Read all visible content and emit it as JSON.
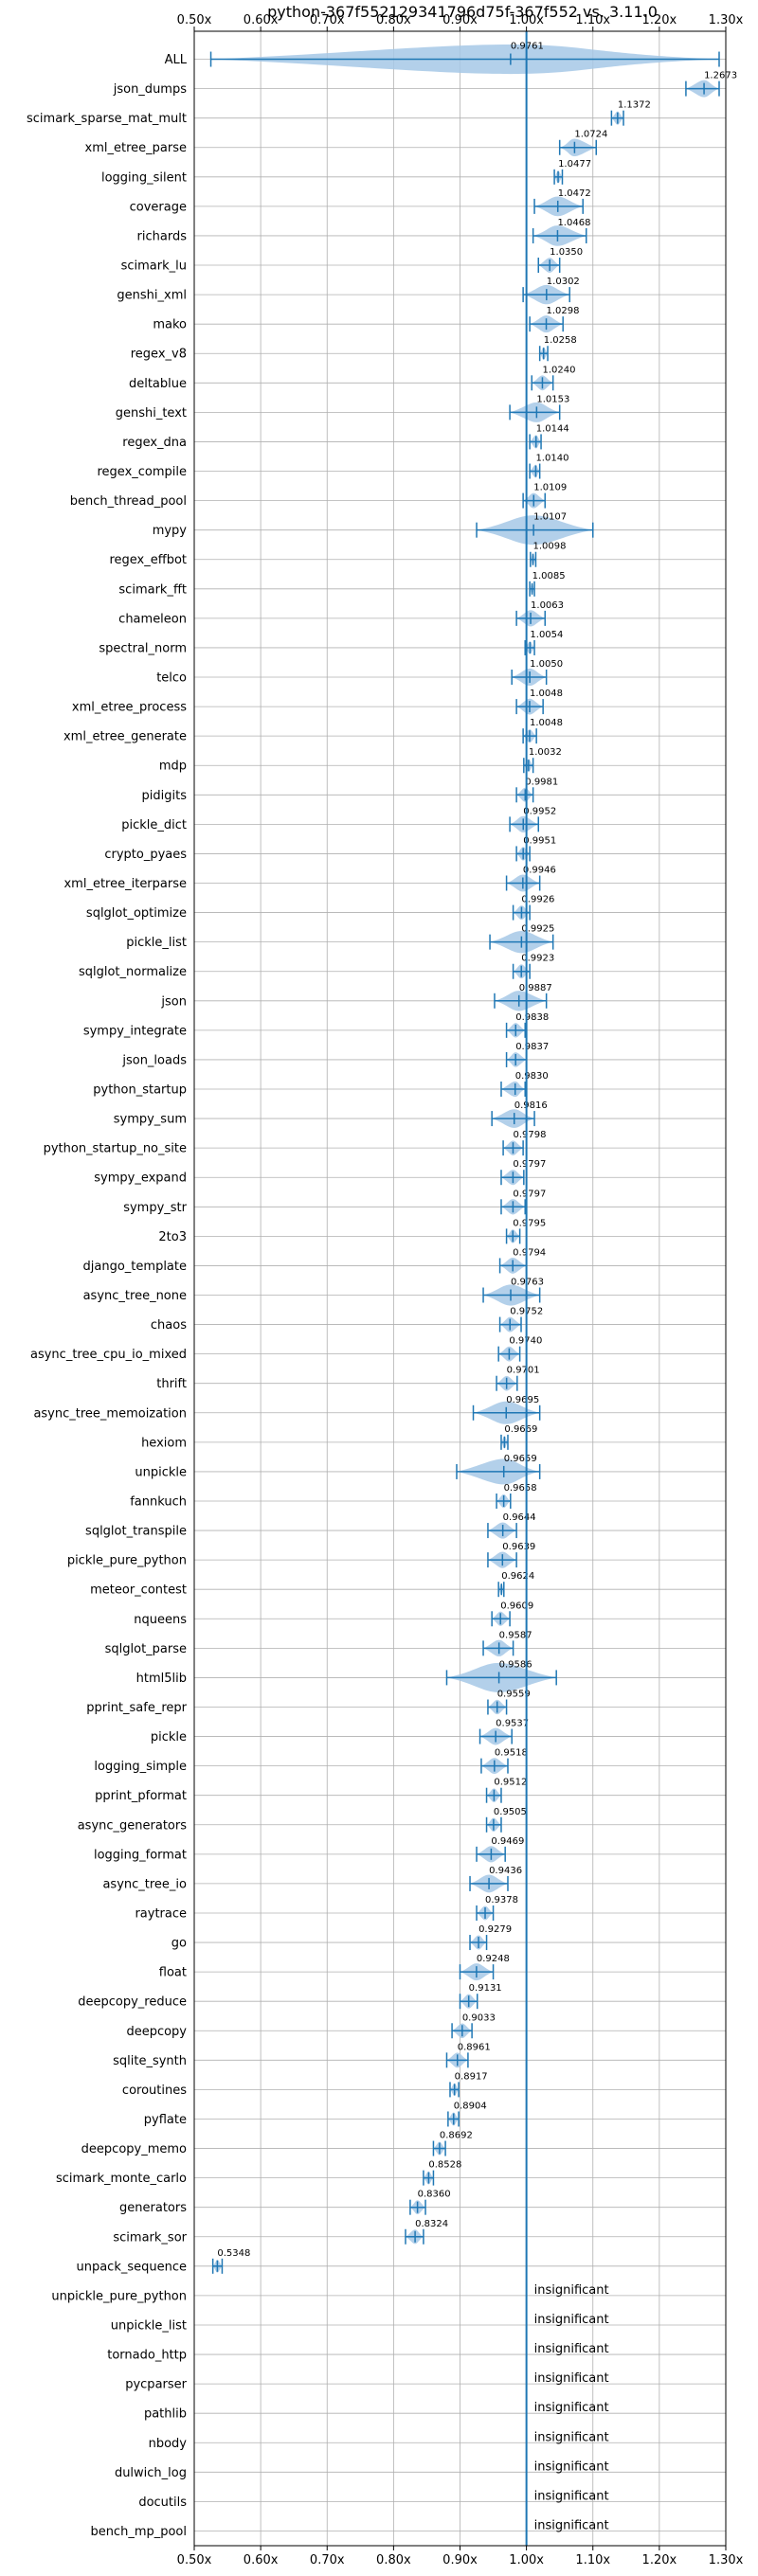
{
  "chart_data": {
    "type": "violin",
    "orientation": "horizontal",
    "title": "python-367f552129341796d75f-367f552 vs. 3.11.0",
    "xlim": [
      0.5,
      1.3
    ],
    "xticks": [
      0.5,
      0.6,
      0.7,
      0.8,
      0.9,
      1.0,
      1.1,
      1.2,
      1.3
    ],
    "xtick_labels": [
      "0.50x",
      "0.60x",
      "0.70x",
      "0.80x",
      "0.90x",
      "1.00x",
      "1.10x",
      "1.20x",
      "1.30x"
    ],
    "grid": true,
    "reference_line": 1.0,
    "colors": {
      "series": "#1f77b4",
      "violin_fill": "#a6c8e6",
      "grid": "#b0b0b0"
    },
    "insignificant_label": "insignificant",
    "benchmarks": [
      {
        "name": "ALL",
        "value": 0.9761,
        "min": 0.525,
        "max": 1.29,
        "label": "0.9761"
      },
      {
        "name": "json_dumps",
        "value": 1.2673,
        "min": 1.24,
        "max": 1.29,
        "label": "1.2673"
      },
      {
        "name": "scimark_sparse_mat_mult",
        "value": 1.1372,
        "min": 1.128,
        "max": 1.146,
        "label": "1.1372"
      },
      {
        "name": "xml_etree_parse",
        "value": 1.0724,
        "min": 1.05,
        "max": 1.105,
        "label": "1.0724"
      },
      {
        "name": "logging_silent",
        "value": 1.0477,
        "min": 1.042,
        "max": 1.054,
        "label": "1.0477"
      },
      {
        "name": "coverage",
        "value": 1.0472,
        "min": 1.012,
        "max": 1.085,
        "label": "1.0472"
      },
      {
        "name": "richards",
        "value": 1.0468,
        "min": 1.01,
        "max": 1.09,
        "label": "1.0468"
      },
      {
        "name": "scimark_lu",
        "value": 1.035,
        "min": 1.018,
        "max": 1.05,
        "label": "1.0350"
      },
      {
        "name": "genshi_xml",
        "value": 1.0302,
        "min": 0.995,
        "max": 1.065,
        "label": "1.0302"
      },
      {
        "name": "mako",
        "value": 1.0298,
        "min": 1.005,
        "max": 1.055,
        "label": "1.0298"
      },
      {
        "name": "regex_v8",
        "value": 1.0258,
        "min": 1.02,
        "max": 1.032,
        "label": "1.0258"
      },
      {
        "name": "deltablue",
        "value": 1.024,
        "min": 1.008,
        "max": 1.04,
        "label": "1.0240"
      },
      {
        "name": "genshi_text",
        "value": 1.0153,
        "min": 0.975,
        "max": 1.05,
        "label": "1.0153"
      },
      {
        "name": "regex_dna",
        "value": 1.0144,
        "min": 1.005,
        "max": 1.022,
        "label": "1.0144"
      },
      {
        "name": "regex_compile",
        "value": 1.014,
        "min": 1.005,
        "max": 1.02,
        "label": "1.0140"
      },
      {
        "name": "bench_thread_pool",
        "value": 1.0109,
        "min": 0.995,
        "max": 1.028,
        "label": "1.0109"
      },
      {
        "name": "mypy",
        "value": 1.0107,
        "min": 0.925,
        "max": 1.1,
        "label": "1.0107"
      },
      {
        "name": "regex_effbot",
        "value": 1.0098,
        "min": 1.006,
        "max": 1.014,
        "label": "1.0098"
      },
      {
        "name": "scimark_fft",
        "value": 1.0085,
        "min": 1.005,
        "max": 1.012,
        "label": "1.0085"
      },
      {
        "name": "chameleon",
        "value": 1.0063,
        "min": 0.985,
        "max": 1.028,
        "label": "1.0063"
      },
      {
        "name": "spectral_norm",
        "value": 1.0054,
        "min": 0.998,
        "max": 1.012,
        "label": "1.0054"
      },
      {
        "name": "telco",
        "value": 1.005,
        "min": 0.978,
        "max": 1.03,
        "label": "1.0050"
      },
      {
        "name": "xml_etree_process",
        "value": 1.0048,
        "min": 0.985,
        "max": 1.025,
        "label": "1.0048"
      },
      {
        "name": "xml_etree_generate",
        "value": 1.0048,
        "min": 0.995,
        "max": 1.015,
        "label": "1.0048"
      },
      {
        "name": "mdp",
        "value": 1.0032,
        "min": 0.996,
        "max": 1.01,
        "label": "1.0032"
      },
      {
        "name": "pidigits",
        "value": 0.9981,
        "min": 0.985,
        "max": 1.01,
        "label": "0.9981"
      },
      {
        "name": "pickle_dict",
        "value": 0.9952,
        "min": 0.975,
        "max": 1.018,
        "label": "0.9952"
      },
      {
        "name": "crypto_pyaes",
        "value": 0.9951,
        "min": 0.985,
        "max": 1.005,
        "label": "0.9951"
      },
      {
        "name": "xml_etree_iterparse",
        "value": 0.9946,
        "min": 0.97,
        "max": 1.02,
        "label": "0.9946"
      },
      {
        "name": "sqlglot_optimize",
        "value": 0.9926,
        "min": 0.98,
        "max": 1.005,
        "label": "0.9926"
      },
      {
        "name": "pickle_list",
        "value": 0.9925,
        "min": 0.945,
        "max": 1.04,
        "label": "0.9925"
      },
      {
        "name": "sqlglot_normalize",
        "value": 0.9923,
        "min": 0.98,
        "max": 1.005,
        "label": "0.9923"
      },
      {
        "name": "json",
        "value": 0.9887,
        "min": 0.952,
        "max": 1.03,
        "label": "0.9887"
      },
      {
        "name": "sympy_integrate",
        "value": 0.9838,
        "min": 0.97,
        "max": 0.998,
        "label": "0.9838"
      },
      {
        "name": "json_loads",
        "value": 0.9837,
        "min": 0.97,
        "max": 1.0,
        "label": "0.9837"
      },
      {
        "name": "python_startup",
        "value": 0.983,
        "min": 0.962,
        "max": 0.998,
        "label": "0.9830"
      },
      {
        "name": "sympy_sum",
        "value": 0.9816,
        "min": 0.948,
        "max": 1.012,
        "label": "0.9816"
      },
      {
        "name": "python_startup_no_site",
        "value": 0.9798,
        "min": 0.965,
        "max": 0.995,
        "label": "0.9798"
      },
      {
        "name": "sympy_expand",
        "value": 0.9797,
        "min": 0.962,
        "max": 0.996,
        "label": "0.9797"
      },
      {
        "name": "sympy_str",
        "value": 0.9797,
        "min": 0.962,
        "max": 0.998,
        "label": "0.9797"
      },
      {
        "name": "2to3",
        "value": 0.9795,
        "min": 0.97,
        "max": 0.99,
        "label": "0.9795"
      },
      {
        "name": "django_template",
        "value": 0.9794,
        "min": 0.96,
        "max": 1.0,
        "label": "0.9794"
      },
      {
        "name": "async_tree_none",
        "value": 0.9763,
        "min": 0.935,
        "max": 1.02,
        "label": "0.9763"
      },
      {
        "name": "chaos",
        "value": 0.9752,
        "min": 0.96,
        "max": 0.992,
        "label": "0.9752"
      },
      {
        "name": "async_tree_cpu_io_mixed",
        "value": 0.974,
        "min": 0.958,
        "max": 0.99,
        "label": "0.9740"
      },
      {
        "name": "thrift",
        "value": 0.9701,
        "min": 0.955,
        "max": 0.986,
        "label": "0.9701"
      },
      {
        "name": "async_tree_memoization",
        "value": 0.9695,
        "min": 0.92,
        "max": 1.02,
        "label": "0.9695"
      },
      {
        "name": "hexiom",
        "value": 0.9669,
        "min": 0.962,
        "max": 0.972,
        "label": "0.9669"
      },
      {
        "name": "unpickle",
        "value": 0.9659,
        "min": 0.895,
        "max": 1.02,
        "label": "0.9659"
      },
      {
        "name": "fannkuch",
        "value": 0.9658,
        "min": 0.955,
        "max": 0.976,
        "label": "0.9658"
      },
      {
        "name": "sqlglot_transpile",
        "value": 0.9644,
        "min": 0.942,
        "max": 0.985,
        "label": "0.9644"
      },
      {
        "name": "pickle_pure_python",
        "value": 0.9639,
        "min": 0.942,
        "max": 0.985,
        "label": "0.9639"
      },
      {
        "name": "meteor_contest",
        "value": 0.9624,
        "min": 0.958,
        "max": 0.966,
        "label": "0.9624"
      },
      {
        "name": "nqueens",
        "value": 0.9609,
        "min": 0.948,
        "max": 0.975,
        "label": "0.9609"
      },
      {
        "name": "sqlglot_parse",
        "value": 0.9587,
        "min": 0.935,
        "max": 0.98,
        "label": "0.9587"
      },
      {
        "name": "html5lib",
        "value": 0.9586,
        "min": 0.88,
        "max": 1.045,
        "label": "0.9586"
      },
      {
        "name": "pprint_safe_repr",
        "value": 0.9559,
        "min": 0.942,
        "max": 0.97,
        "label": "0.9559"
      },
      {
        "name": "pickle",
        "value": 0.9537,
        "min": 0.93,
        "max": 0.978,
        "label": "0.9537"
      },
      {
        "name": "logging_simple",
        "value": 0.9518,
        "min": 0.932,
        "max": 0.972,
        "label": "0.9518"
      },
      {
        "name": "pprint_pformat",
        "value": 0.9512,
        "min": 0.94,
        "max": 0.962,
        "label": "0.9512"
      },
      {
        "name": "async_generators",
        "value": 0.9505,
        "min": 0.94,
        "max": 0.962,
        "label": "0.9505"
      },
      {
        "name": "logging_format",
        "value": 0.9469,
        "min": 0.925,
        "max": 0.968,
        "label": "0.9469"
      },
      {
        "name": "async_tree_io",
        "value": 0.9436,
        "min": 0.915,
        "max": 0.972,
        "label": "0.9436"
      },
      {
        "name": "raytrace",
        "value": 0.9378,
        "min": 0.925,
        "max": 0.95,
        "label": "0.9378"
      },
      {
        "name": "go",
        "value": 0.9279,
        "min": 0.915,
        "max": 0.94,
        "label": "0.9279"
      },
      {
        "name": "float",
        "value": 0.9248,
        "min": 0.9,
        "max": 0.95,
        "label": "0.9248"
      },
      {
        "name": "deepcopy_reduce",
        "value": 0.9131,
        "min": 0.9,
        "max": 0.926,
        "label": "0.9131"
      },
      {
        "name": "deepcopy",
        "value": 0.9033,
        "min": 0.888,
        "max": 0.918,
        "label": "0.9033"
      },
      {
        "name": "sqlite_synth",
        "value": 0.8961,
        "min": 0.88,
        "max": 0.912,
        "label": "0.8961"
      },
      {
        "name": "coroutines",
        "value": 0.8917,
        "min": 0.885,
        "max": 0.898,
        "label": "0.8917"
      },
      {
        "name": "pyflate",
        "value": 0.8904,
        "min": 0.882,
        "max": 0.898,
        "label": "0.8904"
      },
      {
        "name": "deepcopy_memo",
        "value": 0.8692,
        "min": 0.86,
        "max": 0.878,
        "label": "0.8692"
      },
      {
        "name": "scimark_monte_carlo",
        "value": 0.8528,
        "min": 0.845,
        "max": 0.86,
        "label": "0.8528"
      },
      {
        "name": "generators",
        "value": 0.836,
        "min": 0.825,
        "max": 0.848,
        "label": "0.8360"
      },
      {
        "name": "scimark_sor",
        "value": 0.8324,
        "min": 0.818,
        "max": 0.845,
        "label": "0.8324"
      },
      {
        "name": "unpack_sequence",
        "value": 0.5348,
        "min": 0.528,
        "max": 0.542,
        "label": "0.5348"
      },
      {
        "name": "unpickle_pure_python",
        "insignificant": true
      },
      {
        "name": "unpickle_list",
        "insignificant": true
      },
      {
        "name": "tornado_http",
        "insignificant": true
      },
      {
        "name": "pycparser",
        "insignificant": true
      },
      {
        "name": "pathlib",
        "insignificant": true
      },
      {
        "name": "nbody",
        "insignificant": true
      },
      {
        "name": "dulwich_log",
        "insignificant": true
      },
      {
        "name": "docutils",
        "insignificant": true
      },
      {
        "name": "bench_mp_pool",
        "insignificant": true
      }
    ]
  }
}
